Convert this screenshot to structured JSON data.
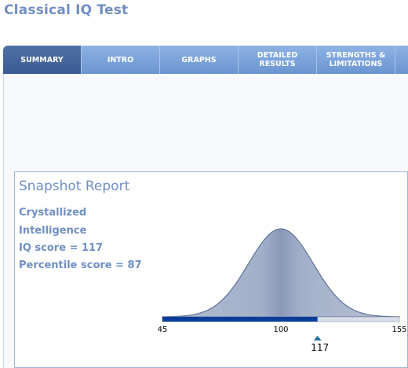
{
  "app": {
    "title": "Classical IQ Test"
  },
  "tabs": [
    {
      "label": "SUMMARY",
      "active": true
    },
    {
      "label": "INTRO",
      "active": false
    },
    {
      "label": "GRAPHS",
      "active": false
    },
    {
      "label": "DETAILED\nRESULTS",
      "active": false
    },
    {
      "label": "STRENGTHS &\nLIMITATIONS",
      "active": false
    }
  ],
  "report": {
    "title": "Snapshot Report",
    "line1": "Crystallized",
    "line2": "Intelligence",
    "iq_line": "IQ score = 117",
    "percentile_line": "Percentile score = 87"
  },
  "chart_data": {
    "type": "area",
    "x_min": 45,
    "x_max": 155,
    "mean": 100,
    "sd": 15,
    "tick_labels": [
      "45",
      "100",
      "155"
    ],
    "marker_value": 117,
    "marker_label": "117",
    "percentile": 87
  },
  "colors": {
    "accent": "#6f8fc4",
    "tab_active": "#3b5c93",
    "tab_bg": "#7aa2da",
    "bell_fill": "#a7b6cf",
    "bell_stroke": "#5d7299",
    "score_bar": "#0a3d9a",
    "track": "#d9dee8"
  },
  "icons": {
    "marker": "triangle-up-icon"
  }
}
